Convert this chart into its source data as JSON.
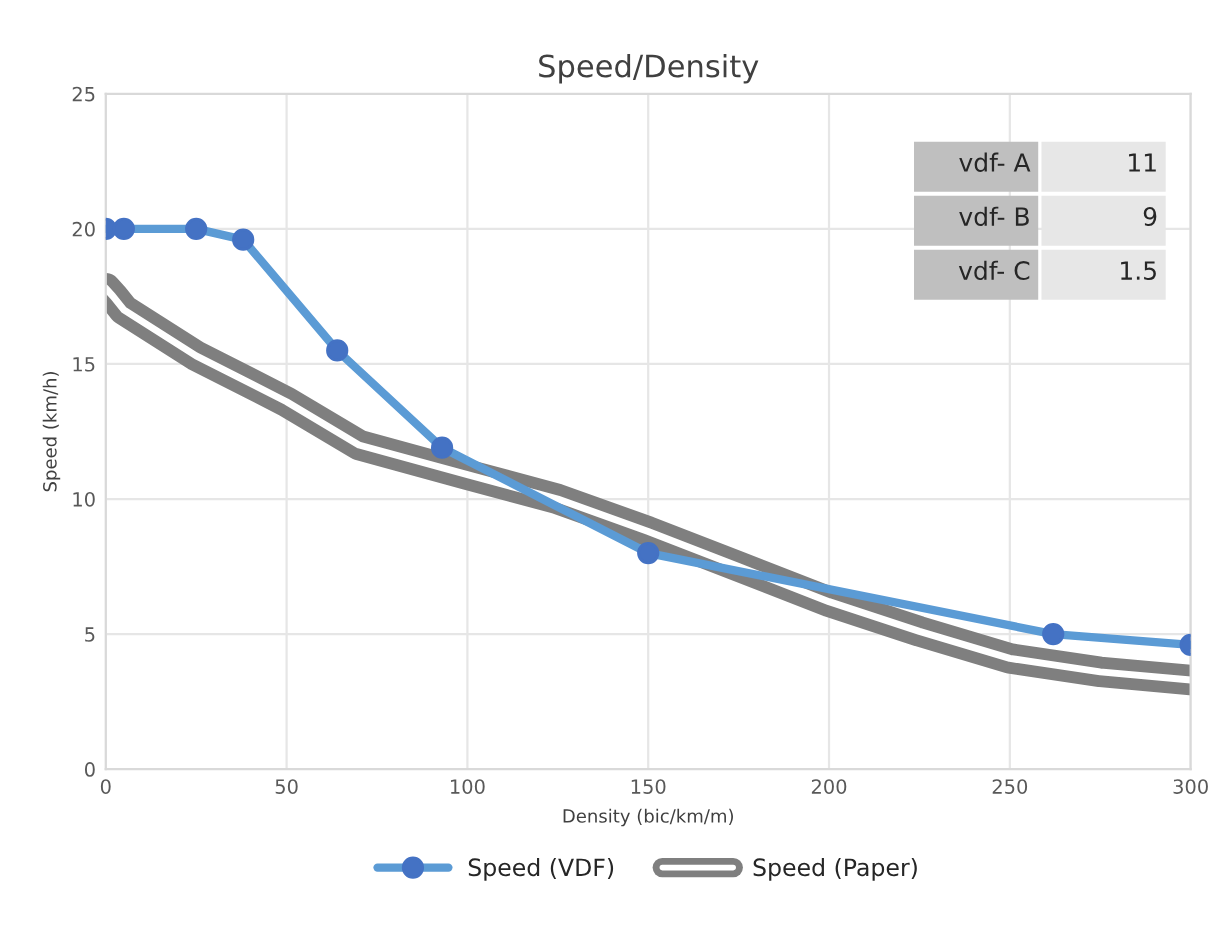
{
  "chart_data": {
    "type": "line",
    "title": "Speed/Density",
    "xlabel": "Density (bic/km/m)",
    "ylabel": "Speed (km/h)",
    "xlim": [
      0,
      300
    ],
    "xticks": [
      0,
      50,
      100,
      150,
      200,
      250,
      300
    ],
    "ylim": [
      0,
      25
    ],
    "yticks": [
      0,
      5,
      10,
      15,
      20,
      25
    ],
    "grid": true,
    "legend": "bottom",
    "series": [
      {
        "name": "Speed (VDF)",
        "color": "#5b9bd5",
        "marker": "circle",
        "x": [
          0,
          5,
          25,
          38,
          64,
          93,
          150,
          262,
          300
        ],
        "values": [
          20,
          20,
          20,
          19.6,
          15.5,
          11.9,
          8,
          5,
          4.6
        ]
      },
      {
        "name": "Speed (Paper)",
        "color": "#7f7f7f",
        "marker": "none",
        "x": [
          0,
          2,
          5,
          25,
          50,
          70,
          100,
          125,
          150,
          175,
          200,
          225,
          250,
          275,
          300
        ],
        "values": [
          17.8,
          17.5,
          17,
          15.3,
          13.6,
          12,
          10.9,
          10,
          8.8,
          7.5,
          6.2,
          5.1,
          4.1,
          3.6,
          3.3
        ]
      }
    ],
    "annotations": [
      "vdf- A",
      "11",
      "vdf- B",
      "9",
      "vdf- C",
      "1.5"
    ]
  }
}
